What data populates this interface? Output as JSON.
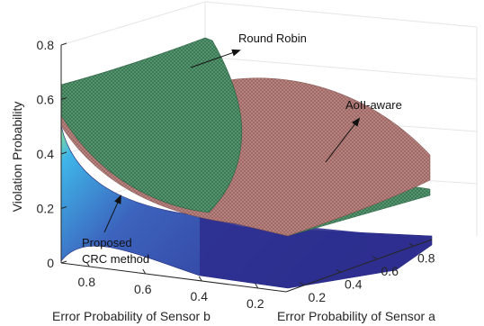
{
  "chart_data": {
    "type": "surface3d",
    "title": "",
    "zlabel": "Violation Probability",
    "xlabel": "Error Probability of Sensor b",
    "ylabel": "Error Probability of Sensor a",
    "zlim": [
      0,
      0.8
    ],
    "z_ticks": [
      "0",
      "0.2",
      "0.4",
      "0.6",
      "0.8"
    ],
    "b_ticks": [
      "0.8",
      "0.6",
      "0.4",
      "0.2"
    ],
    "a_ticks": [
      "0.2",
      "0.4",
      "0.6",
      "0.8"
    ],
    "grid": true,
    "series": [
      {
        "name": "Round Robin",
        "color": "#3a7a55",
        "samples": [
          {
            "a": 0.1,
            "b": 0.9,
            "z": 0.66
          },
          {
            "a": 0.1,
            "b": 0.1,
            "z": 0.81
          },
          {
            "a": 0.9,
            "b": 0.9,
            "z": 0.24
          },
          {
            "a": 0.9,
            "b": 0.1,
            "z": 0.22
          }
        ]
      },
      {
        "name": "AoII-aware",
        "color": "#a16a66",
        "samples": [
          {
            "a": 0.1,
            "b": 0.9,
            "z": 0.58
          },
          {
            "a": 0.1,
            "b": 0.1,
            "z": 0.59
          },
          {
            "a": 0.9,
            "b": 0.9,
            "z": 0.34
          },
          {
            "a": 0.9,
            "b": 0.1,
            "z": 0.26
          }
        ]
      },
      {
        "name": "Proposed CRC method",
        "colormap": [
          "#2e2f8f",
          "#3c63bd",
          "#3fb5e8",
          "#8fe08a"
        ],
        "samples": [
          {
            "a": 0.1,
            "b": 0.9,
            "z": 0.5
          },
          {
            "a": 0.1,
            "b": 0.1,
            "z": 0.04
          },
          {
            "a": 0.9,
            "b": 0.9,
            "z": 0.09
          },
          {
            "a": 0.9,
            "b": 0.1,
            "z": 0.03
          }
        ]
      }
    ],
    "annotations": [
      {
        "text": "Round Robin",
        "target": "Round Robin"
      },
      {
        "text": "AoII-aware",
        "target": "AoII-aware"
      },
      {
        "text": "Proposed",
        "target": "Proposed CRC method"
      },
      {
        "text": "CRC method",
        "target": "Proposed CRC method"
      }
    ]
  }
}
